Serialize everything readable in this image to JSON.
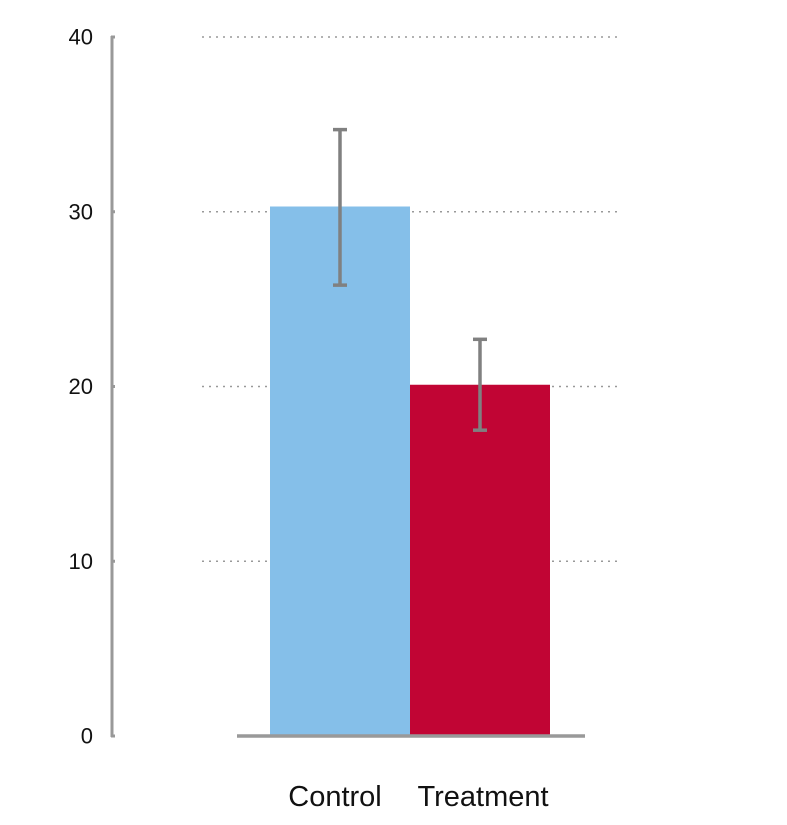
{
  "chart_data": {
    "type": "bar",
    "title": "",
    "xlabel": "",
    "ylabel": "",
    "categories": [
      "Control",
      "Treatment"
    ],
    "values": [
      30.3,
      20.1
    ],
    "error_low": [
      25.8,
      17.5
    ],
    "error_high": [
      34.7,
      22.7
    ],
    "ylim": [
      0,
      40
    ],
    "yticks": [
      0,
      10,
      20,
      30,
      40
    ],
    "ytick_labels": [
      "0",
      "10",
      "20",
      "30",
      "40"
    ],
    "grid": true,
    "grid_style": "dotted",
    "legend": "none",
    "colors": {
      "bars": [
        "#85BFE9",
        "#C10534"
      ],
      "error_bar": "#808080",
      "axis": "#999999",
      "grid": "#999999"
    }
  }
}
